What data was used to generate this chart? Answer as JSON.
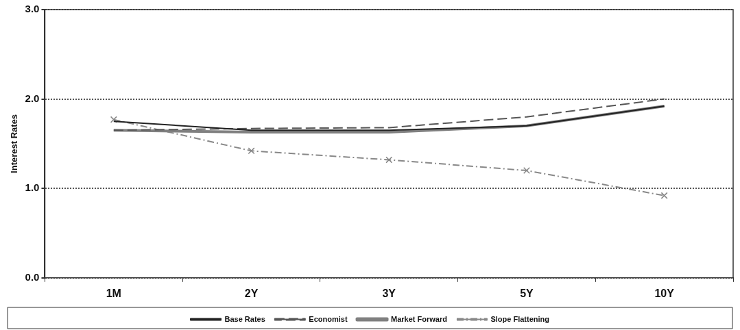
{
  "chart_data": {
    "type": "line",
    "ylabel": "Interest Rates",
    "categories": [
      "1M",
      "2Y",
      "3Y",
      "5Y",
      "10Y"
    ],
    "series": [
      {
        "name": "Base Rates",
        "color": "#222222",
        "values": [
          1.75,
          1.65,
          1.65,
          1.7,
          1.92
        ],
        "line_style": "solid",
        "marker": "none"
      },
      {
        "name": "Economist",
        "color": "#555555",
        "values": [
          1.65,
          1.67,
          1.68,
          1.8,
          2.0
        ],
        "line_style": "dashed",
        "marker": "none"
      },
      {
        "name": "Market Forward",
        "color": "#808080",
        "values": [
          1.65,
          1.63,
          1.63,
          1.7,
          1.92
        ],
        "line_style": "solid",
        "marker": "none"
      },
      {
        "name": "Slope Flattening",
        "color": "#888888",
        "values": [
          1.77,
          1.42,
          1.32,
          1.2,
          0.92
        ],
        "line_style": "dashdot",
        "marker": "cross"
      }
    ],
    "ylim": [
      0,
      3
    ],
    "yticks": [
      {
        "value": 0,
        "label": "0.0"
      },
      {
        "value": 1,
        "label": "1.0"
      },
      {
        "value": 2,
        "label": "2.0"
      },
      {
        "value": 3,
        "label": "3.0"
      }
    ],
    "grid": "y",
    "legend": "bottom"
  }
}
